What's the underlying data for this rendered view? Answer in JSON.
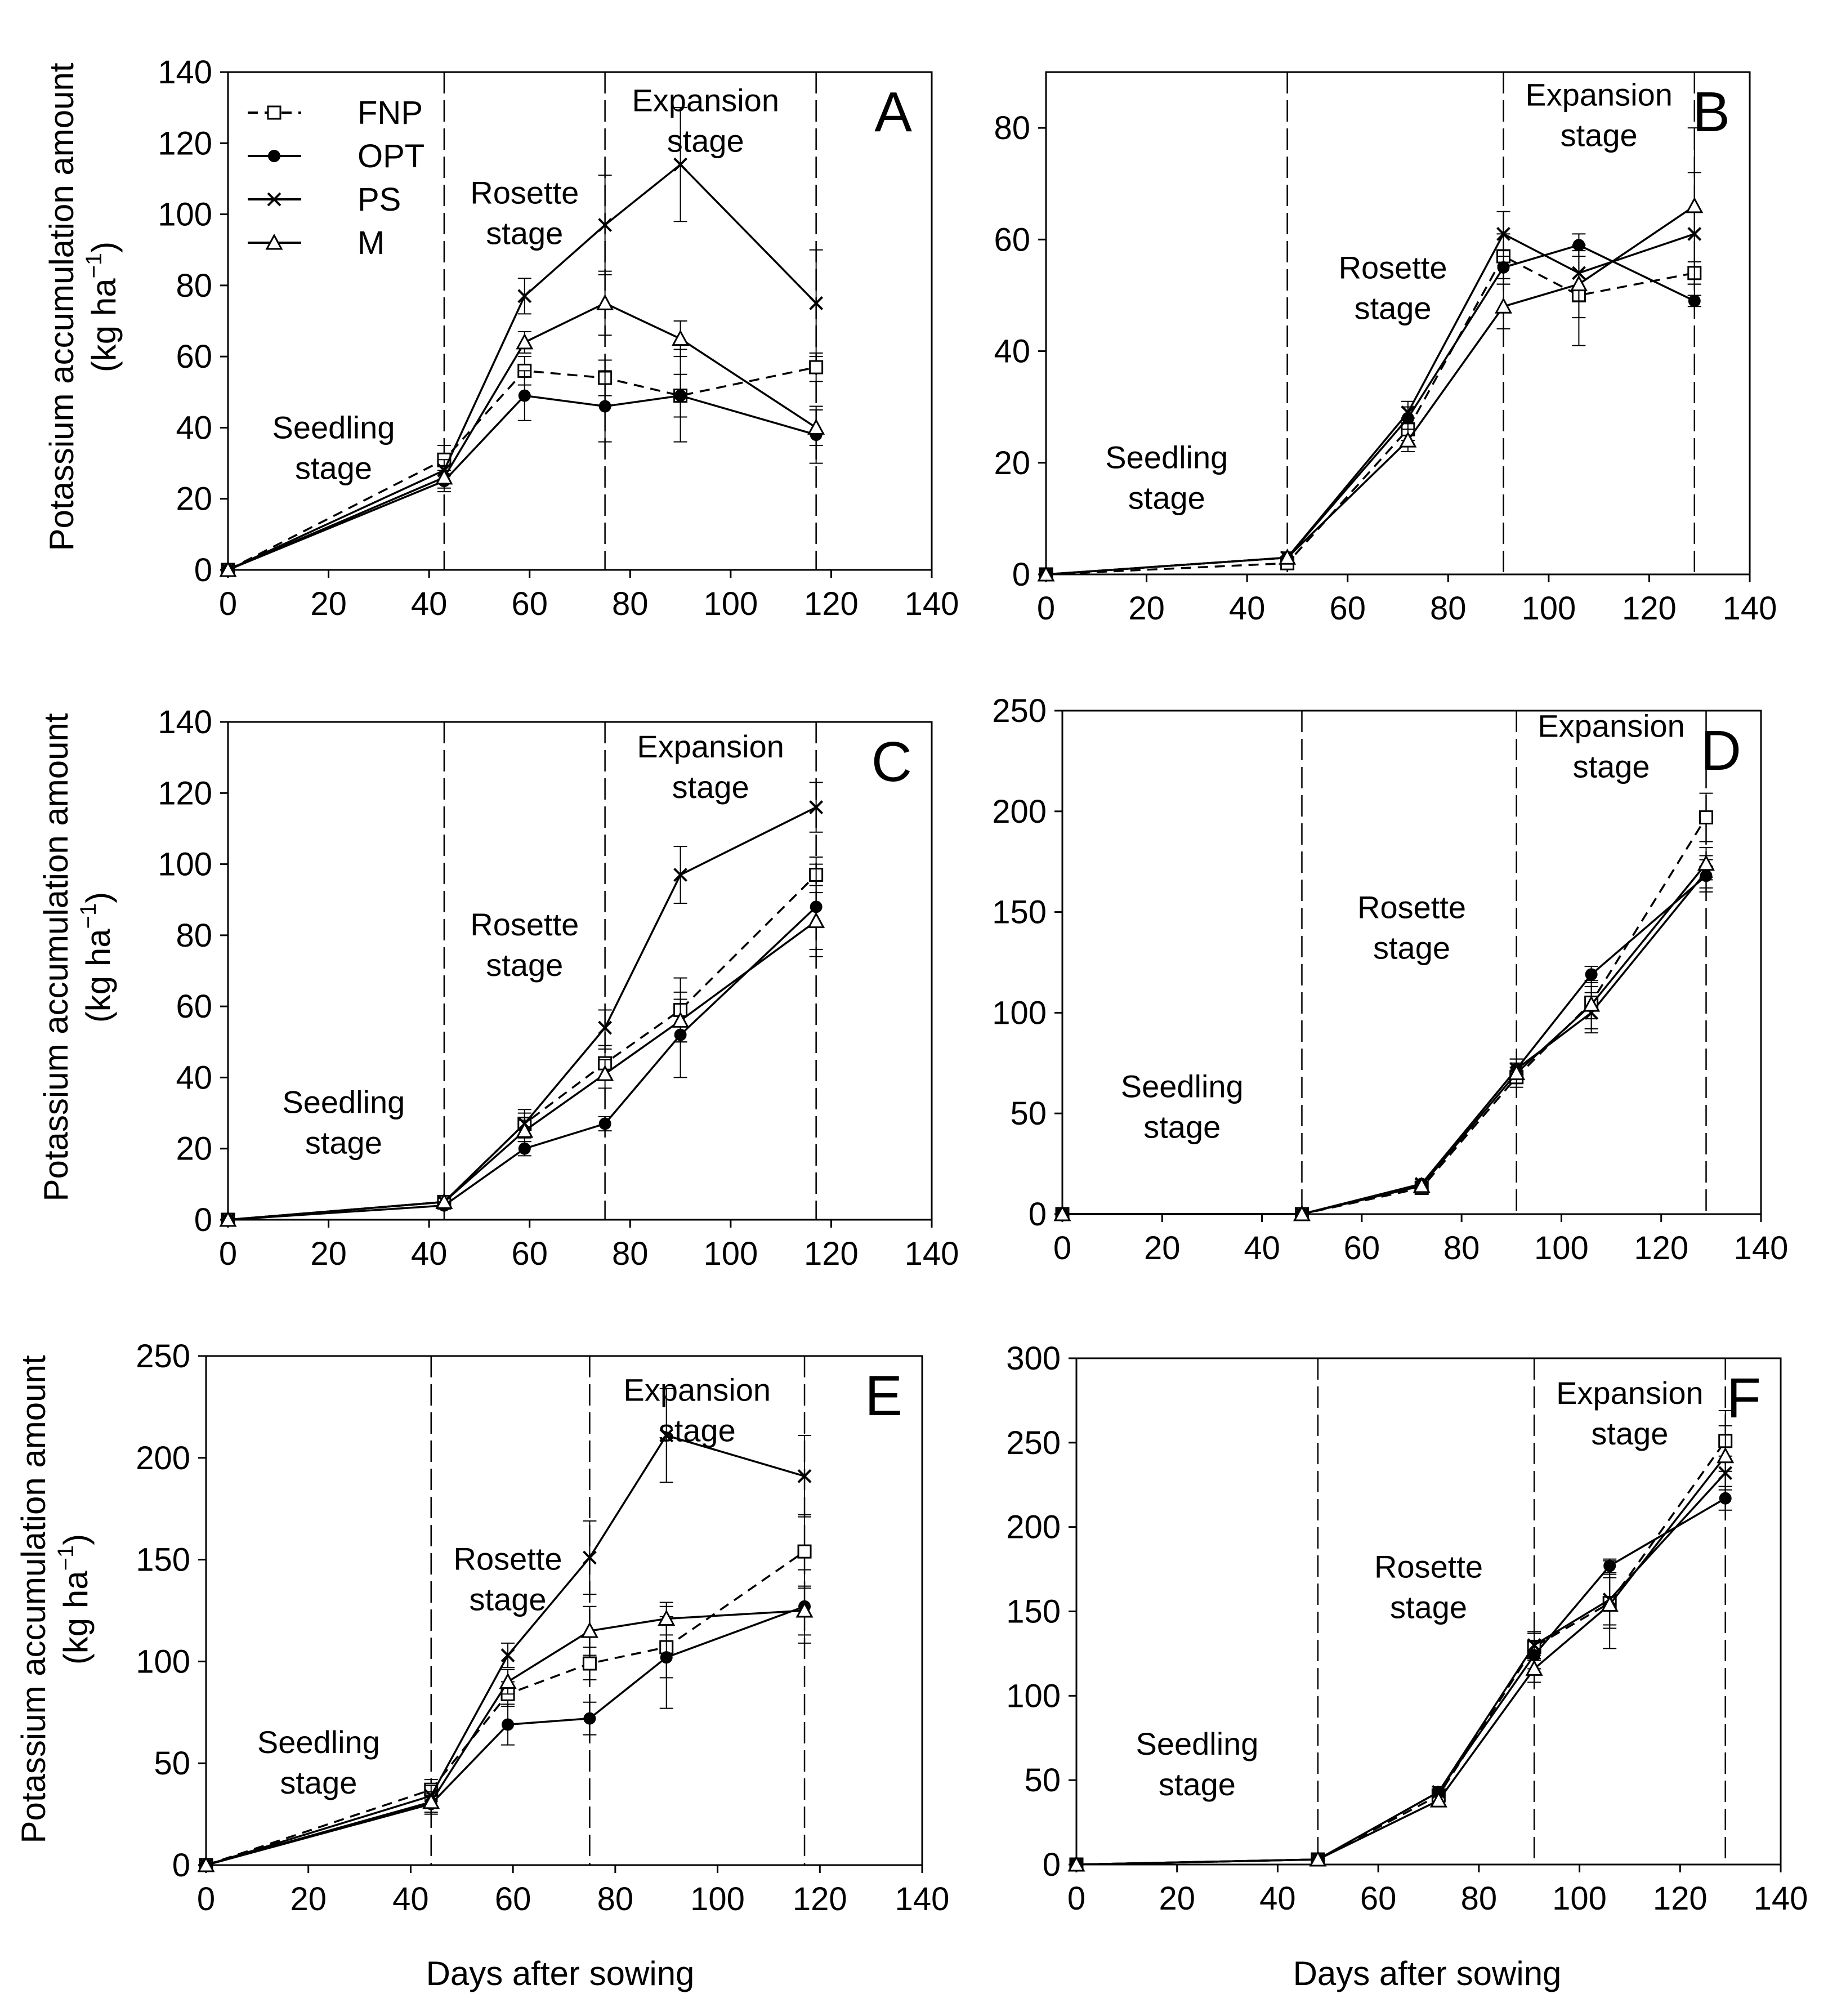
{
  "figure": {
    "ylabel_line1": "Potassium accumulation amount",
    "ylabel_line2": "(kg ha",
    "ylabel_sup": "−1",
    "ylabel_close": ")",
    "xlabel": "Days after sowing"
  },
  "legend": [
    {
      "name": "FNP",
      "marker": "open-square",
      "line": "dashed"
    },
    {
      "name": "OPT",
      "marker": "filled-circle",
      "line": "solid"
    },
    {
      "name": "PS",
      "marker": "x-cross",
      "line": "solid"
    },
    {
      "name": "M",
      "marker": "open-triangle",
      "line": "solid"
    }
  ],
  "colors": {
    "ink": "#000000",
    "background": "#ffffff"
  },
  "chart_data": [
    {
      "id": "A",
      "type": "line",
      "xlim": [
        0,
        140
      ],
      "ylim": [
        0,
        140
      ],
      "xticks": [
        0,
        20,
        40,
        60,
        80,
        100,
        120,
        140
      ],
      "yticks": [
        0,
        20,
        40,
        60,
        80,
        100,
        120,
        140
      ],
      "stage_boundaries": [
        43,
        75,
        117
      ],
      "stages": [
        {
          "line1": "Seedling",
          "line2": "stage",
          "x": 21,
          "y": 37
        },
        {
          "line1": "Rosette",
          "line2": "stage",
          "x": 59,
          "y": 103
        },
        {
          "line1": "Expansion",
          "line2": "stage",
          "x": 95,
          "y": 129
        }
      ],
      "x": [
        0,
        43,
        59,
        75,
        90,
        117
      ],
      "series": [
        {
          "name": "FNP",
          "values": [
            0,
            31,
            56,
            54,
            49,
            57
          ],
          "errors": [
            0,
            4,
            4,
            5,
            6,
            4
          ]
        },
        {
          "name": "OPT",
          "values": [
            0,
            25,
            49,
            46,
            49,
            38
          ],
          "errors": [
            0,
            3,
            7,
            10,
            13,
            8
          ]
        },
        {
          "name": "PS",
          "values": [
            0,
            28,
            77,
            97,
            114,
            75
          ],
          "errors": [
            0,
            3,
            5,
            14,
            16,
            15
          ]
        },
        {
          "name": "M",
          "values": [
            0,
            26,
            64,
            75,
            65,
            40
          ],
          "errors": [
            0,
            3,
            3,
            9,
            5,
            5
          ]
        }
      ]
    },
    {
      "id": "B",
      "type": "line",
      "xlim": [
        0,
        140
      ],
      "ylim": [
        0,
        90
      ],
      "xticks": [
        0,
        20,
        40,
        60,
        80,
        100,
        120,
        140
      ],
      "yticks": [
        0,
        20,
        40,
        60,
        80
      ],
      "stage_boundaries": [
        48,
        91,
        129
      ],
      "stages": [
        {
          "line1": "Seedling",
          "line2": "stage",
          "x": 24,
          "y": 19
        },
        {
          "line1": "Rosette",
          "line2": "stage",
          "x": 69,
          "y": 53
        },
        {
          "line1": "Expansion",
          "line2": "stage",
          "x": 110,
          "y": 84
        }
      ],
      "x": [
        0,
        48,
        72,
        91,
        106,
        129
      ],
      "series": [
        {
          "name": "FNP",
          "values": [
            0,
            2,
            26,
            57,
            50,
            54
          ],
          "errors": [
            0,
            1,
            2,
            4,
            9,
            2
          ]
        },
        {
          "name": "OPT",
          "values": [
            0,
            3,
            28,
            55,
            59,
            49
          ],
          "errors": [
            0,
            1,
            2,
            3,
            2,
            1
          ]
        },
        {
          "name": "PS",
          "values": [
            0,
            3,
            29,
            61,
            54,
            61
          ],
          "errors": [
            0,
            1,
            2,
            4,
            5,
            11
          ]
        },
        {
          "name": "M",
          "values": [
            0,
            3,
            24,
            48,
            52,
            66
          ],
          "errors": [
            0,
            1,
            2,
            4,
            6,
            14
          ]
        }
      ]
    },
    {
      "id": "C",
      "type": "line",
      "xlim": [
        0,
        140
      ],
      "ylim": [
        0,
        140
      ],
      "xticks": [
        0,
        20,
        40,
        60,
        80,
        100,
        120,
        140
      ],
      "yticks": [
        0,
        20,
        40,
        60,
        80,
        100,
        120,
        140
      ],
      "stage_boundaries": [
        43,
        75,
        117
      ],
      "stages": [
        {
          "line1": "Seedling",
          "line2": "stage",
          "x": 23,
          "y": 30
        },
        {
          "line1": "Rosette",
          "line2": "stage",
          "x": 59,
          "y": 80
        },
        {
          "line1": "Expansion",
          "line2": "stage",
          "x": 96,
          "y": 130
        }
      ],
      "x": [
        0,
        43,
        59,
        75,
        90,
        117
      ],
      "series": [
        {
          "name": "FNP",
          "values": [
            0,
            5,
            27,
            44,
            59,
            97
          ],
          "errors": [
            0,
            1,
            3,
            4,
            9,
            5
          ]
        },
        {
          "name": "OPT",
          "values": [
            0,
            4,
            20,
            27,
            52,
            88
          ],
          "errors": [
            0,
            1,
            2,
            2,
            12,
            12
          ]
        },
        {
          "name": "PS",
          "values": [
            0,
            5,
            27,
            54,
            97,
            116
          ],
          "errors": [
            0,
            1,
            4,
            5,
            8,
            7
          ]
        },
        {
          "name": "M",
          "values": [
            0,
            5,
            25,
            41,
            56,
            84
          ],
          "errors": [
            0,
            1,
            3,
            4,
            6,
            10
          ]
        }
      ]
    },
    {
      "id": "D",
      "type": "line",
      "xlim": [
        0,
        140
      ],
      "ylim": [
        0,
        250
      ],
      "xticks": [
        0,
        20,
        40,
        60,
        80,
        100,
        120,
        140
      ],
      "yticks": [
        0,
        50,
        100,
        150,
        200,
        250
      ],
      "stage_boundaries": [
        48,
        91,
        129
      ],
      "stages": [
        {
          "line1": "Seedling",
          "line2": "stage",
          "x": 24,
          "y": 58
        },
        {
          "line1": "Rosette",
          "line2": "stage",
          "x": 70,
          "y": 147
        },
        {
          "line1": "Expansion",
          "line2": "stage",
          "x": 110,
          "y": 237
        }
      ],
      "x": [
        0,
        48,
        72,
        91,
        106,
        129
      ],
      "series": [
        {
          "name": "FNP",
          "values": [
            0,
            0,
            13,
            68,
            105,
            197
          ],
          "errors": [
            0,
            1,
            2,
            5,
            8,
            12
          ]
        },
        {
          "name": "OPT",
          "values": [
            0,
            0,
            15,
            72,
            119,
            168
          ],
          "errors": [
            0,
            1,
            2,
            5,
            4,
            8
          ]
        },
        {
          "name": "PS",
          "values": [
            0,
            0,
            15,
            72,
            100,
            170
          ],
          "errors": [
            0,
            1,
            2,
            5,
            10,
            8
          ]
        },
        {
          "name": "M",
          "values": [
            0,
            0,
            14,
            70,
            104,
            174
          ],
          "errors": [
            0,
            1,
            2,
            5,
            12,
            8
          ]
        }
      ]
    },
    {
      "id": "E",
      "type": "line",
      "xlim": [
        0,
        140
      ],
      "ylim": [
        0,
        250
      ],
      "xticks": [
        0,
        20,
        40,
        60,
        80,
        100,
        120,
        140
      ],
      "yticks": [
        0,
        50,
        100,
        150,
        200,
        250
      ],
      "stage_boundaries": [
        44,
        75,
        117
      ],
      "stages": [
        {
          "line1": "Seedling",
          "line2": "stage",
          "x": 22,
          "y": 55
        },
        {
          "line1": "Rosette",
          "line2": "stage",
          "x": 59,
          "y": 145
        },
        {
          "line1": "Expansion",
          "line2": "stage",
          "x": 96,
          "y": 228
        }
      ],
      "x": [
        0,
        44,
        59,
        75,
        90,
        117
      ],
      "series": [
        {
          "name": "FNP",
          "values": [
            0,
            37,
            84,
            99,
            107,
            154
          ],
          "errors": [
            0,
            5,
            6,
            8,
            15,
            18
          ]
        },
        {
          "name": "OPT",
          "values": [
            0,
            30,
            69,
            72,
            102,
            127
          ],
          "errors": [
            0,
            5,
            10,
            8,
            25,
            18
          ]
        },
        {
          "name": "PS",
          "values": [
            0,
            34,
            103,
            151,
            211,
            191
          ],
          "errors": [
            0,
            5,
            6,
            18,
            23,
            20
          ]
        },
        {
          "name": "M",
          "values": [
            0,
            31,
            90,
            115,
            121,
            125
          ],
          "errors": [
            0,
            5,
            6,
            12,
            8,
            12
          ]
        }
      ]
    },
    {
      "id": "F",
      "type": "line",
      "xlim": [
        0,
        140
      ],
      "ylim": [
        0,
        300
      ],
      "xticks": [
        0,
        20,
        40,
        60,
        80,
        100,
        120,
        140
      ],
      "yticks": [
        0,
        50,
        100,
        150,
        200,
        250,
        300
      ],
      "stage_boundaries": [
        48,
        91,
        129
      ],
      "stages": [
        {
          "line1": "Seedling",
          "line2": "stage",
          "x": 24,
          "y": 65
        },
        {
          "line1": "Rosette",
          "line2": "stage",
          "x": 70,
          "y": 170
        },
        {
          "line1": "Expansion",
          "line2": "stage",
          "x": 110,
          "y": 273
        }
      ],
      "x": [
        0,
        48,
        72,
        91,
        106,
        129
      ],
      "series": [
        {
          "name": "FNP",
          "values": [
            0,
            3,
            41,
            129,
            155,
            251
          ],
          "errors": [
            0,
            1,
            3,
            8,
            15,
            18
          ]
        },
        {
          "name": "OPT",
          "values": [
            0,
            3,
            43,
            124,
            177,
            217
          ],
          "errors": [
            0,
            1,
            3,
            8,
            4,
            7
          ]
        },
        {
          "name": "PS",
          "values": [
            0,
            3,
            43,
            130,
            157,
            232
          ],
          "errors": [
            0,
            1,
            3,
            8,
            15,
            10
          ]
        },
        {
          "name": "M",
          "values": [
            0,
            3,
            38,
            116,
            154,
            242
          ],
          "errors": [
            0,
            1,
            3,
            8,
            26,
            18
          ]
        }
      ]
    }
  ]
}
